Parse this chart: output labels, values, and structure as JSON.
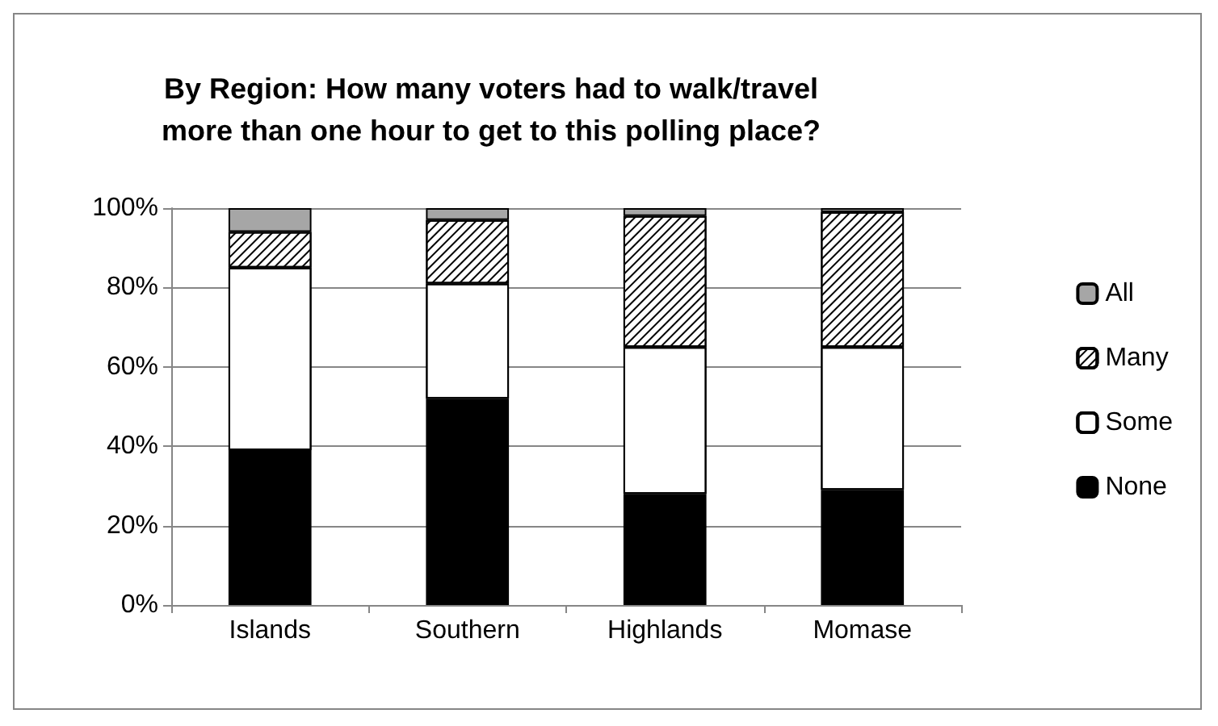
{
  "chart_data": {
    "type": "bar",
    "title": "By Region: How many voters had to walk/travel\nmore than one hour to get to this polling place?",
    "categories": [
      "Islands",
      "Southern",
      "Highlands",
      "Momase"
    ],
    "stacked": true,
    "series": [
      {
        "name": "None",
        "color": "#000000",
        "values": [
          39,
          52,
          28,
          29
        ]
      },
      {
        "name": "Some",
        "color": "#ffffff",
        "values": [
          46,
          29,
          37,
          36
        ]
      },
      {
        "name": "Many",
        "color": "#ffffff",
        "values": [
          9,
          16,
          33,
          34
        ]
      },
      {
        "name": "All",
        "color": "#a6a6a6",
        "values": [
          6,
          3,
          2,
          1
        ]
      }
    ],
    "ylim": [
      0,
      100
    ],
    "yticks": [
      {
        "value": 0,
        "label": "0%"
      },
      {
        "value": 20,
        "label": "20%"
      },
      {
        "value": 40,
        "label": "40%"
      },
      {
        "value": 60,
        "label": "60%"
      },
      {
        "value": 80,
        "label": "80%"
      },
      {
        "value": 100,
        "label": "100%"
      }
    ],
    "grid": "y",
    "legend": "right"
  }
}
